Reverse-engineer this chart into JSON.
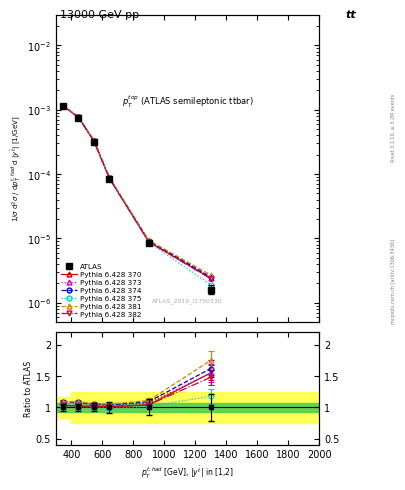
{
  "title_top": "13000 GeV pp",
  "title_right": "tt",
  "panel_title": "$p_T^{top}$ (ATLAS semileptonic ttbar)",
  "watermark": "ATLAS_2019_I1750330",
  "xlabel": "$p_T^{t,had}$ [GeV], $|y^{\\bar{t}}|$ in [1,2]",
  "ylabel_main": "1/$\\sigma$ d$^2\\sigma$ / d$p_T^{t,had}$ d $|y^{\\bar{t}}|$ [1/GeV]",
  "ylabel_ratio": "Ratio to ATLAS",
  "right_label": "Rivet 3.1.10, ≥ 3.2M events",
  "right_label2": "mcplots.cern.ch [arXiv:1306.3436]",
  "x_data": [
    346,
    446,
    546,
    646,
    900,
    1300
  ],
  "atlas_y": [
    0.00115,
    0.00075,
    0.00032,
    8.5e-05,
    8.5e-06,
    1.6e-06
  ],
  "atlas_yerr_lo": [
    5e-05,
    4e-06,
    1.4e-05,
    4.5e-06,
    7.5e-07,
    2.5e-07
  ],
  "atlas_yerr_hi": [
    5e-05,
    4e-06,
    1.4e-05,
    4.5e-06,
    7.5e-07,
    2.5e-07
  ],
  "py370_y": [
    0.00115,
    0.00076,
    0.000325,
    8.6e-05,
    8.8e-06,
    2.4e-06
  ],
  "py373_y": [
    0.00116,
    0.00077,
    0.00033,
    8.7e-05,
    9e-06,
    2.4e-06
  ],
  "py374_y": [
    0.00116,
    0.00077,
    0.00033,
    8.7e-05,
    9.2e-06,
    2.5e-06
  ],
  "py375_y": [
    0.00115,
    0.00076,
    0.00032,
    8.5e-05,
    8.6e-06,
    1.9e-06
  ],
  "py381_y": [
    0.00116,
    0.00078,
    0.000335,
    8.8e-05,
    9.3e-06,
    2.7e-06
  ],
  "py382_y": [
    0.00115,
    0.00076,
    0.000324,
    8.6e-05,
    8.8e-06,
    2.35e-06
  ],
  "ratio_atlas": [
    1.0,
    1.0,
    1.0,
    1.0,
    1.0,
    1.0
  ],
  "ratio_atlas_err": [
    0.06,
    0.055,
    0.065,
    0.09,
    0.13,
    0.22
  ],
  "ratio_370": [
    1.03,
    1.02,
    1.02,
    1.01,
    1.04,
    1.55
  ],
  "ratio_370_err": [
    0.02,
    0.02,
    0.02,
    0.02,
    0.04,
    0.12
  ],
  "ratio_373": [
    1.08,
    1.07,
    1.05,
    1.04,
    1.07,
    1.55
  ],
  "ratio_373_err": [
    0.02,
    0.02,
    0.02,
    0.02,
    0.04,
    0.14
  ],
  "ratio_374": [
    1.09,
    1.08,
    1.05,
    1.04,
    1.09,
    1.62
  ],
  "ratio_374_err": [
    0.02,
    0.02,
    0.02,
    0.02,
    0.04,
    0.14
  ],
  "ratio_375": [
    1.02,
    1.01,
    1.0,
    0.99,
    1.01,
    1.18
  ],
  "ratio_375_err": [
    0.02,
    0.02,
    0.02,
    0.02,
    0.04,
    0.12
  ],
  "ratio_381": [
    1.09,
    1.09,
    1.06,
    1.05,
    1.11,
    1.75
  ],
  "ratio_381_err": [
    0.02,
    0.02,
    0.02,
    0.02,
    0.04,
    0.15
  ],
  "ratio_382": [
    1.03,
    1.02,
    1.01,
    1.01,
    1.04,
    1.48
  ],
  "ratio_382_err": [
    0.02,
    0.02,
    0.02,
    0.02,
    0.04,
    0.12
  ],
  "yellow_x": [
    300,
    400,
    400,
    620,
    620,
    2000
  ],
  "yellow_lo": [
    0.83,
    0.83,
    0.75,
    0.75,
    0.75,
    0.75
  ],
  "yellow_hi": [
    1.17,
    1.17,
    1.25,
    1.25,
    1.25,
    1.25
  ],
  "green_x": [
    300,
    2000
  ],
  "green_lo": [
    0.93,
    0.93
  ],
  "green_hi": [
    1.07,
    1.07
  ],
  "xlim": [
    300,
    2000
  ],
  "ylim_main": [
    5e-07,
    0.03
  ],
  "ylim_ratio": [
    0.4,
    2.2
  ],
  "yticks_ratio_left": [
    0.5,
    1.0,
    1.5,
    2.0
  ],
  "yticks_ratio_right": [
    0.5,
    1.0,
    1.5,
    2.0
  ],
  "color_370": "#cc0000",
  "color_373": "#cc00cc",
  "color_374": "#0000cc",
  "color_375": "#00cccc",
  "color_381": "#cc8800",
  "color_382": "#cc0044",
  "color_atlas": "#000000",
  "bg_color": "#ffffff"
}
